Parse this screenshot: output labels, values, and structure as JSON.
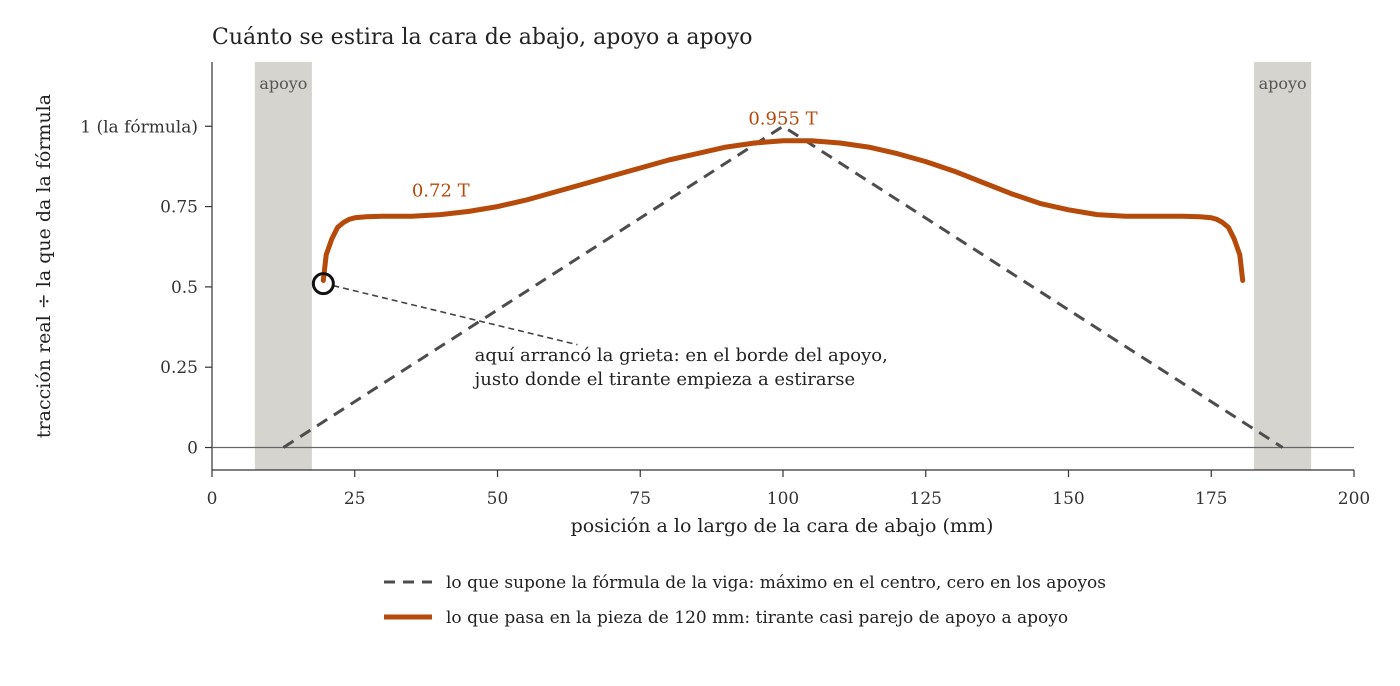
{
  "chart_data": {
    "type": "line",
    "title": "Cuánto se estira la cara de abajo, apoyo a apoyo",
    "xlabel": "posición a lo largo de la cara de abajo (mm)",
    "ylabel": "tracción real ÷ la que da la fórmula",
    "xlim": [
      0,
      200
    ],
    "ylim": [
      -0.07,
      1.2
    ],
    "x_ticks": [
      {
        "value": 0,
        "label": "0"
      },
      {
        "value": 25,
        "label": "25"
      },
      {
        "value": 50,
        "label": "50"
      },
      {
        "value": 75,
        "label": "75"
      },
      {
        "value": 100,
        "label": "100"
      },
      {
        "value": 125,
        "label": "125"
      },
      {
        "value": 150,
        "label": "150"
      },
      {
        "value": 175,
        "label": "175"
      },
      {
        "value": 200,
        "label": "200"
      }
    ],
    "y_ticks": [
      {
        "value": 0,
        "label": "0"
      },
      {
        "value": 0.25,
        "label": "0.25"
      },
      {
        "value": 0.5,
        "label": "0.5"
      },
      {
        "value": 0.75,
        "label": "0.75"
      },
      {
        "value": 1,
        "label": "1 (la fórmula)"
      }
    ],
    "grid": false,
    "legend_position": "bottom",
    "supports": [
      {
        "label": "apoyo",
        "x_from": 7.5,
        "x_to": 17.5
      },
      {
        "label": "apoyo",
        "x_from": 182.5,
        "x_to": 192.5
      }
    ],
    "series": [
      {
        "name": "lo que supone la fórmula de la viga: máximo en el centro, cero en los apoyos",
        "style": "dashed",
        "color": "#4d4d4d",
        "x": [
          12.5,
          100,
          187.5
        ],
        "y": [
          0,
          1,
          0
        ]
      },
      {
        "name": "lo que pasa en la pieza de 120 mm: tirante casi parejo de apoyo a apoyo",
        "style": "solid",
        "color": "#b54a0b",
        "x": [
          19.5,
          20,
          21,
          22,
          23,
          24,
          25,
          27,
          30,
          35,
          40,
          45,
          50,
          55,
          60,
          65,
          70,
          75,
          80,
          85,
          90,
          95,
          100,
          105,
          110,
          115,
          120,
          125,
          130,
          135,
          140,
          145,
          150,
          155,
          160,
          165,
          170,
          173,
          175,
          176,
          177,
          178,
          179,
          180,
          180.5
        ],
        "y": [
          0.52,
          0.6,
          0.65,
          0.685,
          0.7,
          0.71,
          0.715,
          0.718,
          0.72,
          0.72,
          0.725,
          0.735,
          0.75,
          0.77,
          0.795,
          0.82,
          0.845,
          0.87,
          0.895,
          0.915,
          0.935,
          0.948,
          0.955,
          0.955,
          0.948,
          0.935,
          0.915,
          0.89,
          0.86,
          0.825,
          0.79,
          0.76,
          0.74,
          0.725,
          0.72,
          0.72,
          0.72,
          0.718,
          0.715,
          0.71,
          0.7,
          0.685,
          0.65,
          0.6,
          0.52
        ]
      }
    ],
    "curve_labels": [
      {
        "text": "0.72 T",
        "x": 35,
        "y": 0.775
      },
      {
        "text": "0.955 T",
        "x": 100,
        "y": 1.0
      }
    ],
    "annotation": {
      "lines": [
        "aquí arrancó la grieta: en el borde del apoyo,",
        "justo donde el tirante empieza a estirarse"
      ],
      "point": {
        "x": 19.5,
        "y": 0.51
      },
      "text_x": 46,
      "text_y": 0.27
    }
  }
}
